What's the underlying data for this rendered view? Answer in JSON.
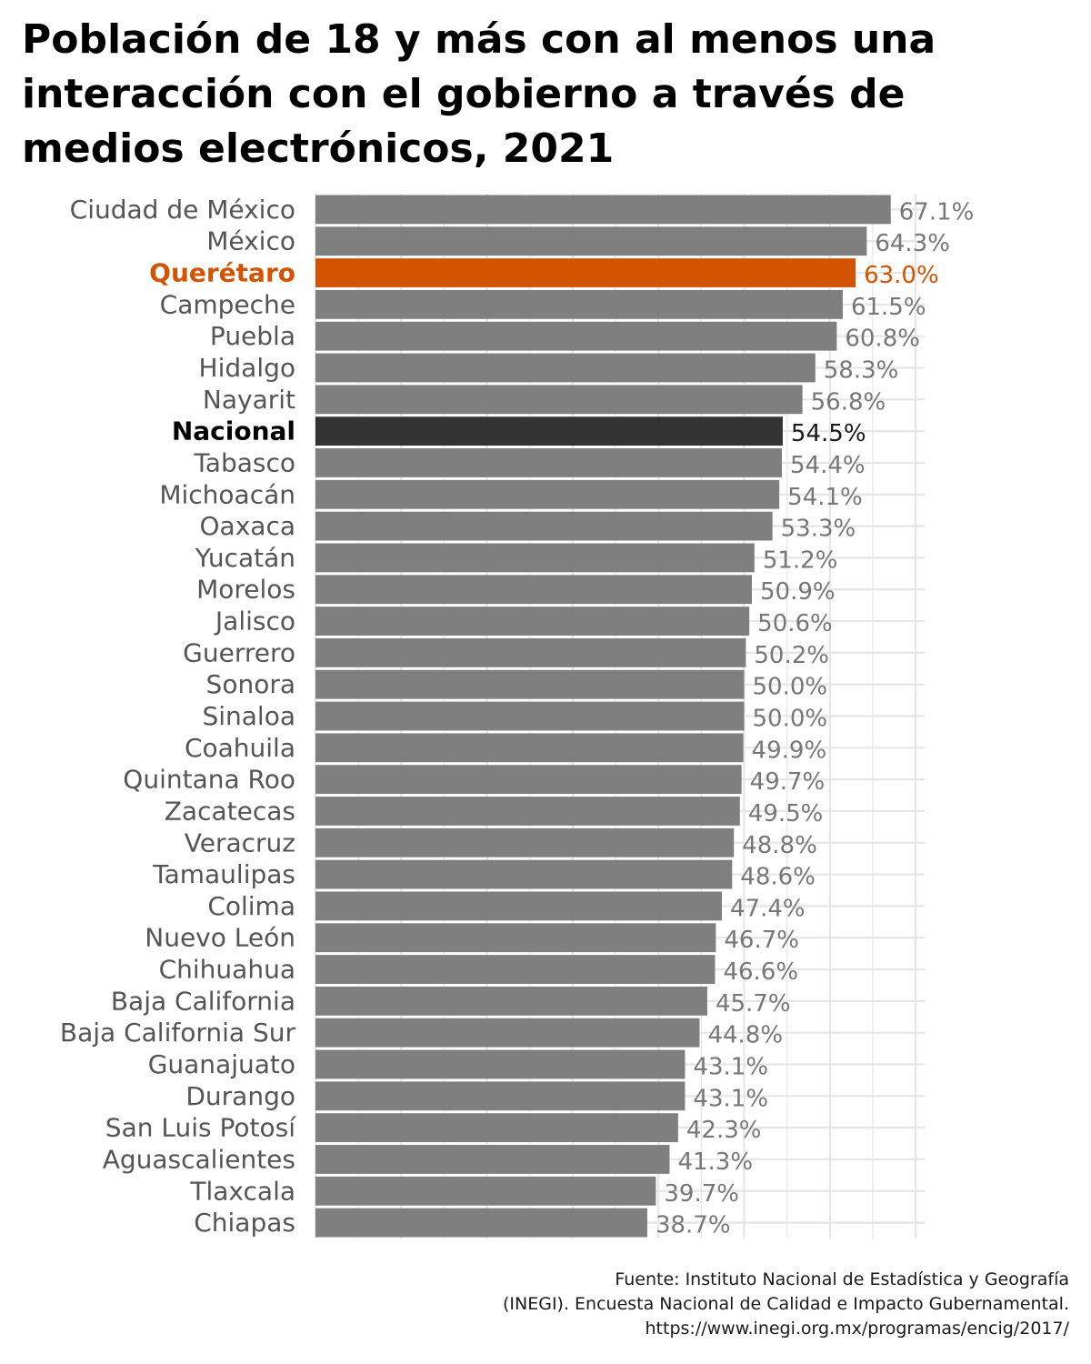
{
  "title": "Población de 18 y más con al menos una interacción con el gobierno a través de medios electrónicos, 2021",
  "source": {
    "line1": "Fuente: Instituto Nacional de Estadística y Geografía",
    "line2": "(INEGI). Encuesta Nacional de Calidad e Impacto Gubernamental.",
    "line3": "https://www.inegi.org.mx/programas/encig/2017/"
  },
  "colors": {
    "default_bar": "#7f7f7f",
    "highlight_bar": "#d35400",
    "national_bar": "#333333",
    "default_label": "#555555",
    "value_label": "#777777",
    "grid": "#e6e6e6"
  },
  "chart_data": {
    "type": "bar",
    "orientation": "horizontal",
    "xlim": [
      0,
      70
    ],
    "grid": true,
    "x_tick_labels_shown": false,
    "value_suffix": "%",
    "highlight": "Querétaro",
    "national": "Nacional",
    "categories": [
      "Ciudad de México",
      "México",
      "Querétaro",
      "Campeche",
      "Puebla",
      "Hidalgo",
      "Nayarit",
      "Nacional",
      "Tabasco",
      "Michoacán",
      "Oaxaca",
      "Yucatán",
      "Morelos",
      "Jalisco",
      "Guerrero",
      "Sonora",
      "Sinaloa",
      "Coahuila",
      "Quintana Roo",
      "Zacatecas",
      "Veracruz",
      "Tamaulipas",
      "Colima",
      "Nuevo León",
      "Chihuahua",
      "Baja California",
      "Baja California Sur",
      "Guanajuato",
      "Durango",
      "San Luis Potosí",
      "Aguascalientes",
      "Tlaxcala",
      "Chiapas"
    ],
    "values": [
      67.1,
      64.3,
      63.0,
      61.5,
      60.8,
      58.3,
      56.8,
      54.5,
      54.4,
      54.1,
      53.3,
      51.2,
      50.9,
      50.6,
      50.2,
      50.0,
      50.0,
      49.9,
      49.7,
      49.5,
      48.8,
      48.6,
      47.4,
      46.7,
      46.6,
      45.7,
      44.8,
      43.1,
      43.1,
      42.3,
      41.3,
      39.7,
      38.7
    ],
    "value_labels": [
      "67.1%",
      "64.3%",
      "63.0%",
      "61.5%",
      "60.8%",
      "58.3%",
      "56.8%",
      "54.5%",
      "54.4%",
      "54.1%",
      "53.3%",
      "51.2%",
      "50.9%",
      "50.6%",
      "50.2%",
      "50.0%",
      "50.0%",
      "49.9%",
      "49.7%",
      "49.5%",
      "48.8%",
      "48.6%",
      "47.4%",
      "46.7%",
      "46.6%",
      "45.7%",
      "44.8%",
      "43.1%",
      "43.1%",
      "42.3%",
      "41.3%",
      "39.7%",
      "38.7%"
    ]
  }
}
